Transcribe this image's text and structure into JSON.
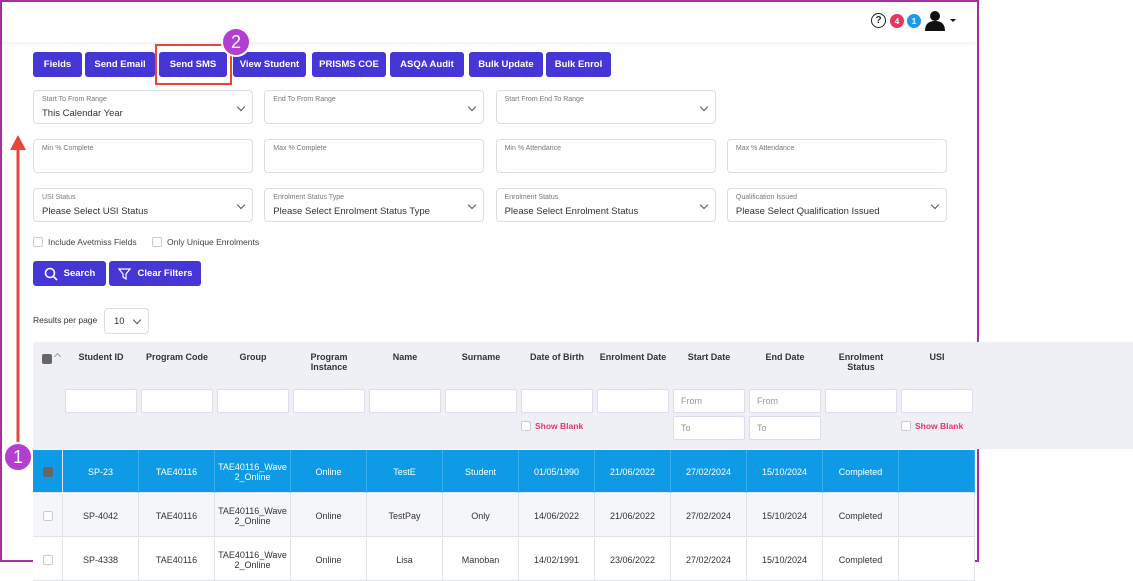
{
  "header": {
    "help": "?",
    "badges": [
      "4",
      "1"
    ]
  },
  "toolbar": {
    "buttons": [
      "Fields",
      "Send Email",
      "Send SMS",
      "View Student",
      "PRISMS COE",
      "ASQA Audit",
      "Bulk Update",
      "Bulk Enrol"
    ]
  },
  "annotations": [
    "1",
    "2"
  ],
  "filters": [
    {
      "label": "Start To From Range",
      "value": "This Calendar Year",
      "select": true
    },
    {
      "label": "End To From Range",
      "select": true
    },
    {
      "label": "Start From End To Range",
      "select": true
    },
    {
      "label": "Min % Complete"
    },
    {
      "label": "Max % Complete"
    },
    {
      "label": "Min % Attendance"
    },
    {
      "label": "Max % Attendance"
    },
    {
      "label": "USI Status",
      "value": "Please Select USI Status",
      "select": true
    },
    {
      "label": "Enrolment Status Type",
      "value": "Please Select Enrolment Status Type",
      "select": true
    },
    {
      "label": "Enrolment Status",
      "value": "Please Select Enrolment Status",
      "select": true
    },
    {
      "label": "Qualification Issued",
      "value": "Please Select Qualification Issued",
      "select": true
    }
  ],
  "checkboxes": [
    "Include Avetmiss Fields",
    "Only Unique Enrolments"
  ],
  "actions": [
    "Search",
    "Clear Filters"
  ],
  "results_per_page": {
    "label": "Results per page",
    "value": "10"
  },
  "table": {
    "columns": [
      "Student ID",
      "Program Code",
      "Group",
      "Program Instance",
      "Name",
      "Surname",
      "Date of Birth",
      "Enrolment Date",
      "Start Date",
      "End Date",
      "Enrolment Status",
      "USI"
    ],
    "from": "From",
    "to": "To",
    "show_blank": "Show Blank",
    "rows": [
      [
        "SP-23",
        "TAE40116",
        "TAE40116_Wave 2_Online",
        "Online",
        "TestE",
        "Student",
        "01/05/1990",
        "21/06/2022",
        "27/02/2024",
        "15/10/2024",
        "Completed"
      ],
      [
        "SP-4042",
        "TAE40116",
        "TAE40116_Wave 2_Online",
        "Online",
        "TestPay",
        "Only",
        "14/06/2022",
        "21/06/2022",
        "27/02/2024",
        "15/10/2024",
        "Completed"
      ],
      [
        "SP-4338",
        "TAE40116",
        "TAE40116_Wave 2_Online",
        "Online",
        "Lisa",
        "Manoban",
        "14/02/1991",
        "23/06/2022",
        "27/02/2024",
        "15/10/2024",
        "Completed"
      ]
    ],
    "selected_row": 0
  }
}
